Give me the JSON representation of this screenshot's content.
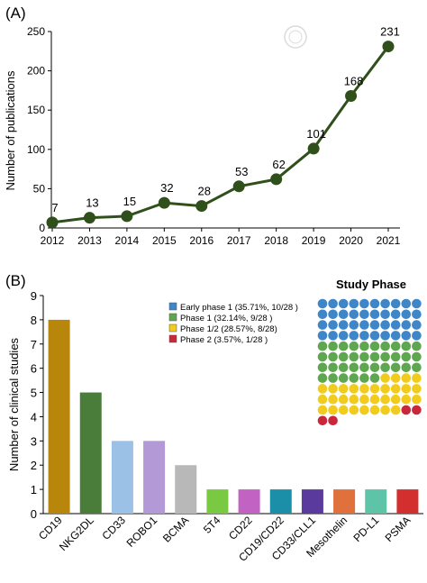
{
  "panel_a": {
    "label": "(A)",
    "ylabel": "Number of publications",
    "yticks": [
      0,
      50,
      100,
      150,
      200,
      250
    ],
    "line_color": "#2f4f1b"
  },
  "panel_b": {
    "label": "(B)",
    "ylabel": "Number of clinical studies",
    "yticks": [
      0,
      1,
      2,
      3,
      4,
      5,
      6,
      7,
      8,
      9
    ],
    "waffle": {
      "title": "Study Phase",
      "legend": [
        {
          "label": "Early phase 1 (35.71%, 10/28 )",
          "color": "#3f86c8"
        },
        {
          "label": "Phase 1 (32.14%, 9/28 )",
          "color": "#5fa650"
        },
        {
          "label": "Phase 1/2 (28.57%, 8/28)",
          "color": "#f2cc1c"
        },
        {
          "label": "Phase 2 (3.57%, 1/28 )",
          "color": "#c8283a"
        }
      ],
      "cells": [
        40,
        36,
        32,
        4
      ]
    }
  },
  "watermark": "",
  "chart_data": [
    {
      "type": "line",
      "title": "",
      "xlabel": "",
      "ylabel": "Number of publications",
      "x": [
        "2012",
        "2013",
        "2014",
        "2015",
        "2016",
        "2017",
        "2018",
        "2019",
        "2020",
        "2021"
      ],
      "values": [
        7,
        13,
        15,
        32,
        28,
        53,
        62,
        101,
        168,
        231
      ],
      "ylim": [
        0,
        250
      ],
      "grid": false
    },
    {
      "type": "bar",
      "title": "",
      "xlabel": "",
      "ylabel": "Number of clinical studies",
      "categories": [
        "CD19",
        "NKG2DL",
        "CD33",
        "ROBO1",
        "BCMA",
        "5T4",
        "CD22",
        "CD19/CD22",
        "CD33/CLL1",
        "Mesothelin",
        "PD-L1",
        "PSMA"
      ],
      "values": [
        8,
        5,
        3,
        3,
        2,
        1,
        1,
        1,
        1,
        1,
        1,
        1
      ],
      "colors": [
        "#b8860b",
        "#4a7d3a",
        "#9bc2e6",
        "#b39ad6",
        "#b8b8b8",
        "#7ac943",
        "#c263c4",
        "#1b8fa8",
        "#5b3a9e",
        "#e0703c",
        "#5ec4a8",
        "#d32f2f"
      ],
      "ylim": [
        0,
        9
      ],
      "grid": false
    }
  ]
}
